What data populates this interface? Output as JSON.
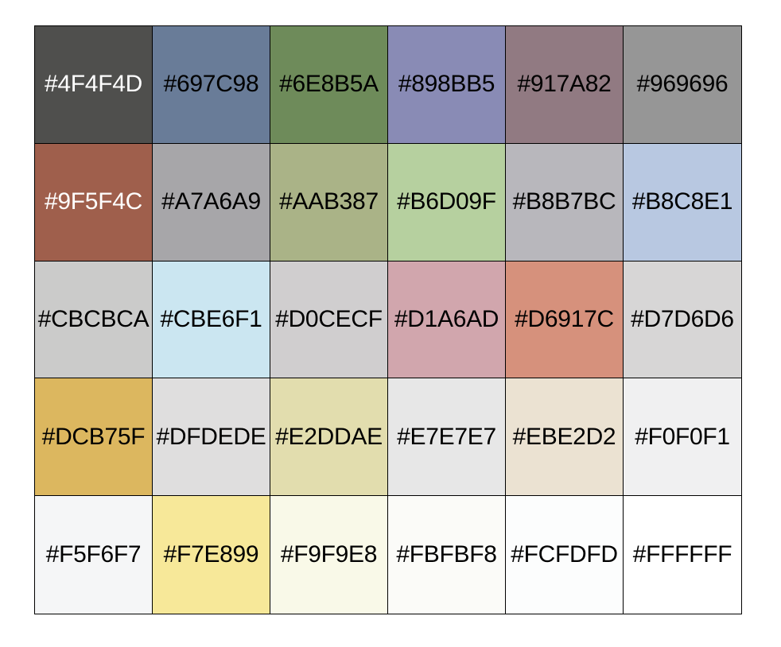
{
  "swatches": [
    {
      "label": "#4F4F4D",
      "color": "#4F4F4D",
      "text_color": "#FFFFFF"
    },
    {
      "label": "#697C98",
      "color": "#697C98",
      "text_color": "#000000"
    },
    {
      "label": "#6E8B5A",
      "color": "#6E8B5A",
      "text_color": "#000000"
    },
    {
      "label": "#898BB5",
      "color": "#898BB5",
      "text_color": "#000000"
    },
    {
      "label": "#917A82",
      "color": "#917A82",
      "text_color": "#000000"
    },
    {
      "label": "#969696",
      "color": "#969696",
      "text_color": "#000000"
    },
    {
      "label": "#9F5F4C",
      "color": "#9F5F4C",
      "text_color": "#FFFFFF"
    },
    {
      "label": "#A7A6A9",
      "color": "#A7A6A9",
      "text_color": "#000000"
    },
    {
      "label": "#AAB387",
      "color": "#AAB387",
      "text_color": "#000000"
    },
    {
      "label": "#B6D09F",
      "color": "#B6D09F",
      "text_color": "#000000"
    },
    {
      "label": "#B8B7BC",
      "color": "#B8B7BC",
      "text_color": "#000000"
    },
    {
      "label": "#B8C8E1",
      "color": "#B8C8E1",
      "text_color": "#000000"
    },
    {
      "label": "#CBCBCA",
      "color": "#CBCBCA",
      "text_color": "#000000"
    },
    {
      "label": "#CBE6F1",
      "color": "#CBE6F1",
      "text_color": "#000000"
    },
    {
      "label": "#D0CECF",
      "color": "#D0CECF",
      "text_color": "#000000"
    },
    {
      "label": "#D1A6AD",
      "color": "#D1A6AD",
      "text_color": "#000000"
    },
    {
      "label": "#D6917C",
      "color": "#D6917C",
      "text_color": "#000000"
    },
    {
      "label": "#D7D6D6",
      "color": "#D7D6D6",
      "text_color": "#000000"
    },
    {
      "label": "#DCB75F",
      "color": "#DCB75F",
      "text_color": "#000000"
    },
    {
      "label": "#DFDEDE",
      "color": "#DFDEDE",
      "text_color": "#000000"
    },
    {
      "label": "#E2DDAE",
      "color": "#E2DDAE",
      "text_color": "#000000"
    },
    {
      "label": "#E7E7E7",
      "color": "#E7E7E7",
      "text_color": "#000000"
    },
    {
      "label": "#EBE2D2",
      "color": "#EBE2D2",
      "text_color": "#000000"
    },
    {
      "label": "#F0F0F1",
      "color": "#F0F0F1",
      "text_color": "#000000"
    },
    {
      "label": "#F5F6F7",
      "color": "#F5F6F7",
      "text_color": "#000000"
    },
    {
      "label": "#F7E899",
      "color": "#F7E899",
      "text_color": "#000000"
    },
    {
      "label": "#F9F9E8",
      "color": "#F9F9E8",
      "text_color": "#000000"
    },
    {
      "label": "#FBFBF8",
      "color": "#FBFBF8",
      "text_color": "#000000"
    },
    {
      "label": "#FCFDFD",
      "color": "#FCFDFD",
      "text_color": "#000000"
    },
    {
      "label": "#FFFFFF",
      "color": "#FFFFFF",
      "text_color": "#000000"
    }
  ]
}
